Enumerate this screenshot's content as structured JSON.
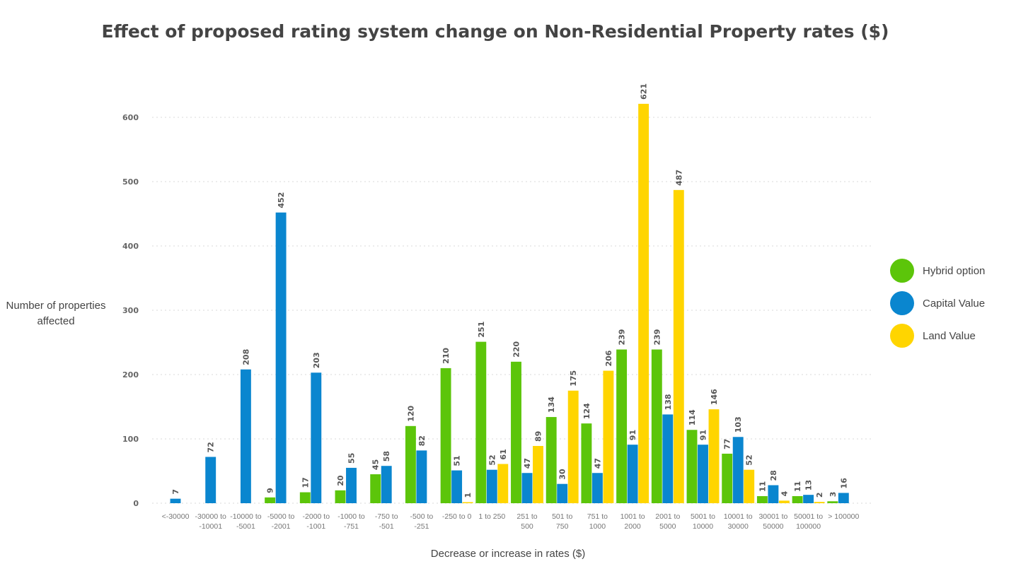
{
  "chart_data": {
    "type": "bar",
    "title": "Effect of proposed rating system change on Non-Residential Property rates ($)",
    "xlabel": "Decrease or increase in rates ($)",
    "ylabel": "Number of properties affected",
    "ylim": [
      0,
      660
    ],
    "yticks": [
      0,
      100,
      200,
      300,
      400,
      500,
      600
    ],
    "grid": true,
    "legend_position": "right",
    "categories": [
      [
        "<-30000"
      ],
      [
        "-30000 to",
        "-10001"
      ],
      [
        "-10000 to",
        "-5001"
      ],
      [
        "-5000 to",
        "-2001"
      ],
      [
        "-2000 to",
        "-1001"
      ],
      [
        "-1000 to",
        "-751"
      ],
      [
        "-750 to",
        "-501"
      ],
      [
        "-500 to",
        "-251"
      ],
      [
        "-250 to 0"
      ],
      [
        "1 to 250"
      ],
      [
        "251 to",
        "500"
      ],
      [
        "501 to",
        "750"
      ],
      [
        "751 to",
        "1000"
      ],
      [
        "1001 to",
        "2000"
      ],
      [
        "2001 to",
        "5000"
      ],
      [
        "5001 to",
        "10000"
      ],
      [
        "10001 to",
        "30000"
      ],
      [
        "30001 to",
        "50000"
      ],
      [
        "50001 to",
        "100000"
      ],
      [
        "> 100000"
      ]
    ],
    "series": [
      {
        "name": "Hybrid option",
        "color": "#5cc50a",
        "values": [
          null,
          null,
          null,
          9,
          17,
          20,
          45,
          120,
          210,
          251,
          220,
          134,
          124,
          239,
          239,
          114,
          77,
          11,
          11,
          3
        ]
      },
      {
        "name": "Capital Value",
        "color": "#0a86cf",
        "values": [
          7,
          72,
          208,
          452,
          203,
          55,
          58,
          82,
          51,
          52,
          47,
          30,
          47,
          91,
          138,
          91,
          103,
          28,
          13,
          16
        ]
      },
      {
        "name": "Land Value",
        "color": "#ffd500",
        "values": [
          null,
          null,
          null,
          null,
          null,
          null,
          null,
          null,
          1,
          61,
          89,
          175,
          206,
          621,
          487,
          146,
          52,
          4,
          2,
          null
        ]
      }
    ]
  }
}
